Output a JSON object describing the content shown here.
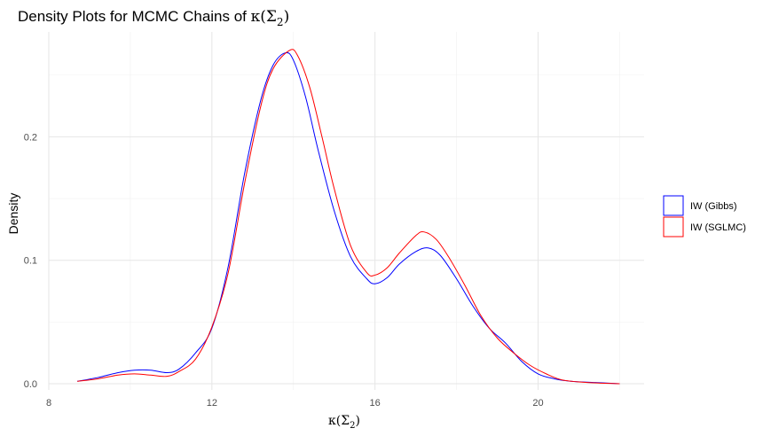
{
  "chart_data": {
    "type": "line",
    "title_prefix": "Density Plots for MCMC Chains of ",
    "title_math": "κ(Σ",
    "title_math_sub": "2",
    "title_math_close": ")",
    "xlabel_math": "κ(Σ",
    "xlabel_math_sub": "2",
    "xlabel_math_close": ")",
    "ylabel": "Density",
    "xlim": [
      8,
      22.6
    ],
    "ylim": [
      -0.005,
      0.285
    ],
    "x_ticks": [
      8,
      12,
      16,
      20
    ],
    "y_ticks": [
      0.0,
      0.1,
      0.2
    ],
    "y_tick_labels": [
      "0.0",
      "0.1",
      "0.2"
    ],
    "grid": true,
    "legend_position": "right",
    "series": [
      {
        "name": "IW (Gibbs)",
        "color": "#0000ff",
        "x": [
          8.7,
          9.2,
          9.7,
          10.1,
          10.5,
          10.9,
          11.2,
          11.6,
          12.0,
          12.4,
          12.8,
          13.2,
          13.5,
          13.8,
          14.0,
          14.3,
          14.6,
          15.0,
          15.4,
          15.8,
          16.0,
          16.3,
          16.6,
          17.0,
          17.3,
          17.6,
          18.0,
          18.4,
          18.8,
          19.2,
          19.6,
          20.0,
          20.4,
          20.8,
          21.4,
          22.0
        ],
        "y": [
          0.002,
          0.005,
          0.009,
          0.011,
          0.011,
          0.009,
          0.012,
          0.025,
          0.045,
          0.095,
          0.17,
          0.23,
          0.258,
          0.268,
          0.262,
          0.232,
          0.19,
          0.14,
          0.103,
          0.085,
          0.081,
          0.086,
          0.097,
          0.107,
          0.11,
          0.104,
          0.085,
          0.063,
          0.045,
          0.033,
          0.018,
          0.008,
          0.004,
          0.002,
          0.001,
          0.0
        ]
      },
      {
        "name": "IW (SGLMC)",
        "color": "#ff0000",
        "x": [
          8.7,
          9.2,
          9.7,
          10.1,
          10.5,
          10.9,
          11.2,
          11.6,
          12.0,
          12.4,
          12.8,
          13.2,
          13.5,
          13.9,
          14.1,
          14.4,
          14.7,
          15.0,
          15.4,
          15.8,
          16.0,
          16.3,
          16.6,
          17.0,
          17.2,
          17.5,
          17.8,
          18.2,
          18.6,
          19.0,
          19.4,
          19.8,
          20.2,
          20.6,
          21.2,
          22.0
        ],
        "y": [
          0.002,
          0.004,
          0.007,
          0.008,
          0.007,
          0.006,
          0.01,
          0.02,
          0.046,
          0.09,
          0.162,
          0.225,
          0.255,
          0.27,
          0.266,
          0.24,
          0.2,
          0.158,
          0.112,
          0.09,
          0.088,
          0.094,
          0.106,
          0.12,
          0.123,
          0.117,
          0.103,
          0.08,
          0.055,
          0.037,
          0.025,
          0.015,
          0.008,
          0.003,
          0.001,
          0.0
        ]
      }
    ]
  }
}
